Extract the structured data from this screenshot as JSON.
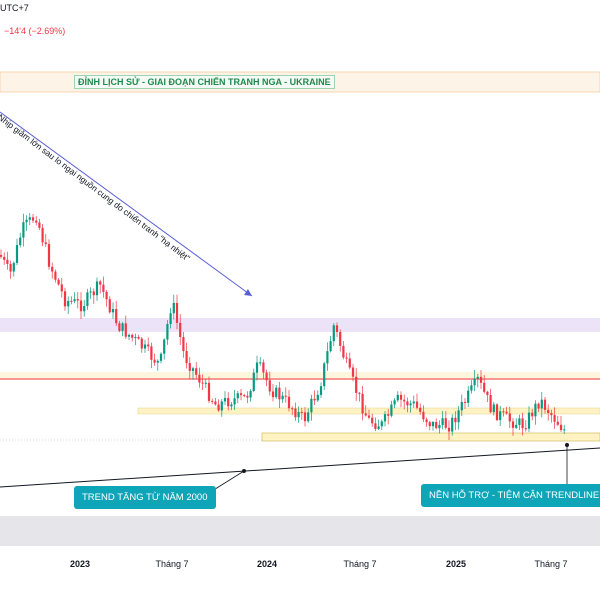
{
  "header": {
    "timezone": "UTC+7",
    "change": "−14'4 (−2.69%)"
  },
  "annotations": {
    "top_box": "ĐỈNH LỊCH SỬ - GIAI ĐOẠN CHIẾN TRANH NGA - UKRAINE",
    "diagonal": "Nhịp giảm lớn sau lo ngại nguồn cung do chiến tranh \"hạ nhiệt\"",
    "trend_callout": "TREND TĂNG TỪ NĂM 2000",
    "support_callout": "NỀN HỖ TRỢ  - TIỆM CẬN TRENDLINE"
  },
  "x_ticks": [
    {
      "label": "2023",
      "year": true
    },
    {
      "label": "Tháng 7",
      "year": false
    },
    {
      "label": "2024",
      "year": true
    },
    {
      "label": "Tháng 7",
      "year": false
    },
    {
      "label": "2025",
      "year": true
    },
    {
      "label": "Tháng 7",
      "year": false
    }
  ],
  "colors": {
    "up": "#089981",
    "down": "#f23645",
    "trendline": "#131722",
    "callout": "#0fa5b8",
    "zone_purple": "#e9dcf7",
    "zone_yellow": "#fff3c4",
    "resistance_red": "#f23645"
  },
  "chart_data": {
    "type": "candlestick",
    "x_range": [
      "2022-05",
      "2025-09"
    ],
    "price_scale": "hidden",
    "levels": [
      {
        "kind": "zone",
        "note": "historic peak zone"
      },
      {
        "kind": "zone",
        "note": "upper purple zone"
      },
      {
        "kind": "line",
        "note": "red resistance"
      },
      {
        "kind": "zone",
        "note": "yellow mid zone"
      },
      {
        "kind": "zone",
        "note": "support base zone"
      }
    ],
    "trendline": "rising, long-term",
    "arrow": "down-right"
  }
}
